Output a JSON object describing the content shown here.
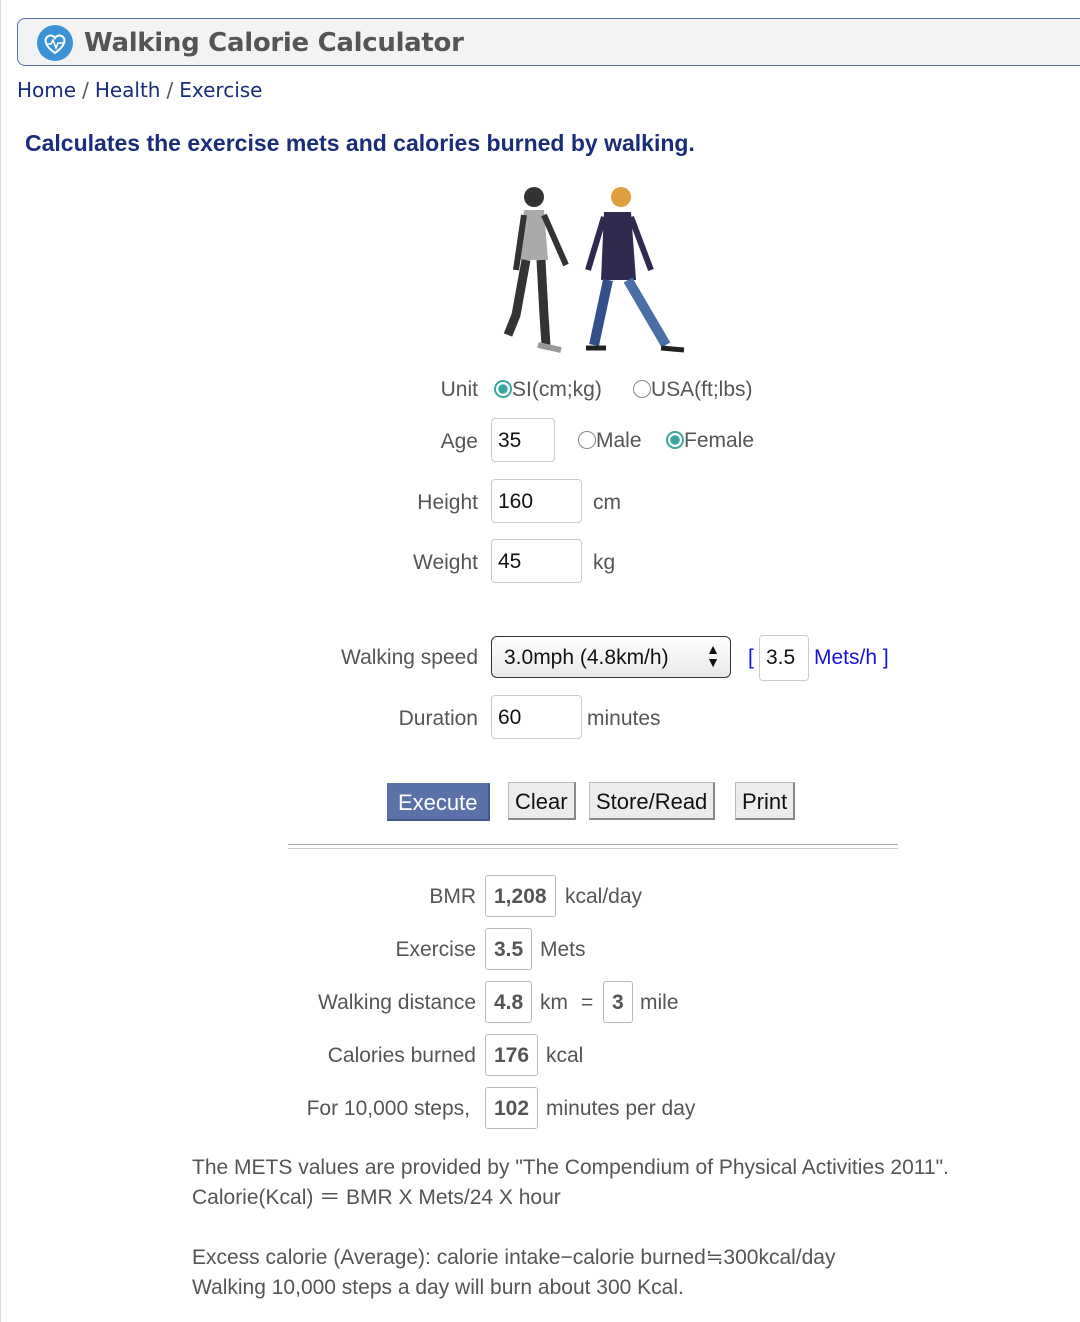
{
  "header": {
    "title": "Walking Calorie Calculator",
    "logo_icon": "heart-pulse-icon"
  },
  "breadcrumb": [
    "Home",
    "Health",
    "Exercise"
  ],
  "subtitle": "Calculates the exercise mets and calories burned by walking.",
  "form": {
    "unit_label": "Unit",
    "unit_options": [
      "SI(cm;kg)",
      "USA(ft;lbs)"
    ],
    "unit_selected": "SI(cm;kg)",
    "age_label": "Age",
    "age": "35",
    "gender_options": [
      "Male",
      "Female"
    ],
    "gender_selected": "Female",
    "height_label": "Height",
    "height": "160",
    "height_unit": "cm",
    "weight_label": "Weight",
    "weight": "45",
    "weight_unit": "kg",
    "speed_label": "Walking speed",
    "speed": "3.0mph (4.8km/h)",
    "mets_open": "[",
    "mets": "3.5",
    "mets_unit": "Mets/h ]",
    "duration_label": "Duration",
    "duration": "60",
    "duration_unit": "minutes"
  },
  "buttons": {
    "execute": "Execute",
    "clear": "Clear",
    "store": "Store/Read",
    "print": "Print"
  },
  "results": {
    "bmr_label": "BMR",
    "bmr": "1,208",
    "bmr_unit": "kcal/day",
    "exercise_label": "Exercise",
    "exercise": "3.5",
    "exercise_unit": "Mets",
    "distance_label": "Walking distance",
    "distance_km": "4.8",
    "km": "km",
    "eq": "=",
    "distance_mile": "3",
    "mile": "mile",
    "calories_label": "Calories burned",
    "calories": "176",
    "calories_unit": "kcal",
    "steps_label": "For 10,000 steps,",
    "steps": "102",
    "steps_unit": "minutes per day"
  },
  "notes": [
    "The METS values are provided by \"The Compendium of Physical Activities 2011\".",
    "Calorie(Kcal) ＝ BMR X Mets/24 X hour",
    "Excess calorie (Average): calorie intake−calorie burned≒300kcal/day",
    "Walking 10,000 steps a day will burn about 300 Kcal."
  ],
  "colors": {
    "accent": "#1a2d7a",
    "button": "#5a72a8",
    "radio": "#3aa6a0"
  }
}
